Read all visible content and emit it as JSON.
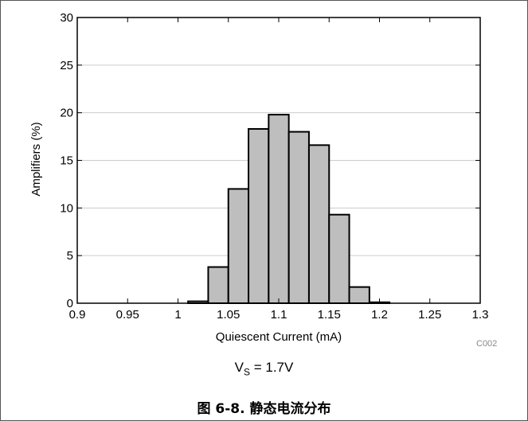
{
  "chart_data": {
    "type": "bar",
    "xlabel": "Quiescent Current (mA)",
    "ylabel": "Amplifiers (%)",
    "xlim": [
      0.9,
      1.3
    ],
    "ylim": [
      0,
      30
    ],
    "x_ticks": [
      "0.9",
      "0.95",
      "1",
      "1.05",
      "1.1",
      "1.15",
      "1.2",
      "1.25",
      "1.3"
    ],
    "y_ticks": [
      "0",
      "5",
      "10",
      "15",
      "20",
      "25",
      "30"
    ],
    "grid": "horizontal",
    "bin_width": 0.02,
    "bins": [
      {
        "x": 1.01,
        "value": 0.2
      },
      {
        "x": 1.03,
        "value": 3.8
      },
      {
        "x": 1.05,
        "value": 12.0
      },
      {
        "x": 1.07,
        "value": 18.3
      },
      {
        "x": 1.09,
        "value": 19.8
      },
      {
        "x": 1.11,
        "value": 18.0
      },
      {
        "x": 1.13,
        "value": 16.6
      },
      {
        "x": 1.15,
        "value": 9.3
      },
      {
        "x": 1.17,
        "value": 1.7
      },
      {
        "x": 1.19,
        "value": 0.1
      }
    ],
    "colors": {
      "bar_fill": "#bebebe",
      "bar_stroke": "#000000",
      "grid": "#cccccc"
    }
  },
  "condition": {
    "prefix": "V",
    "subscript": "S",
    "suffix": " = 1.7V"
  },
  "figure_code": "C002",
  "caption": "图 6-8. 静态电流分布"
}
